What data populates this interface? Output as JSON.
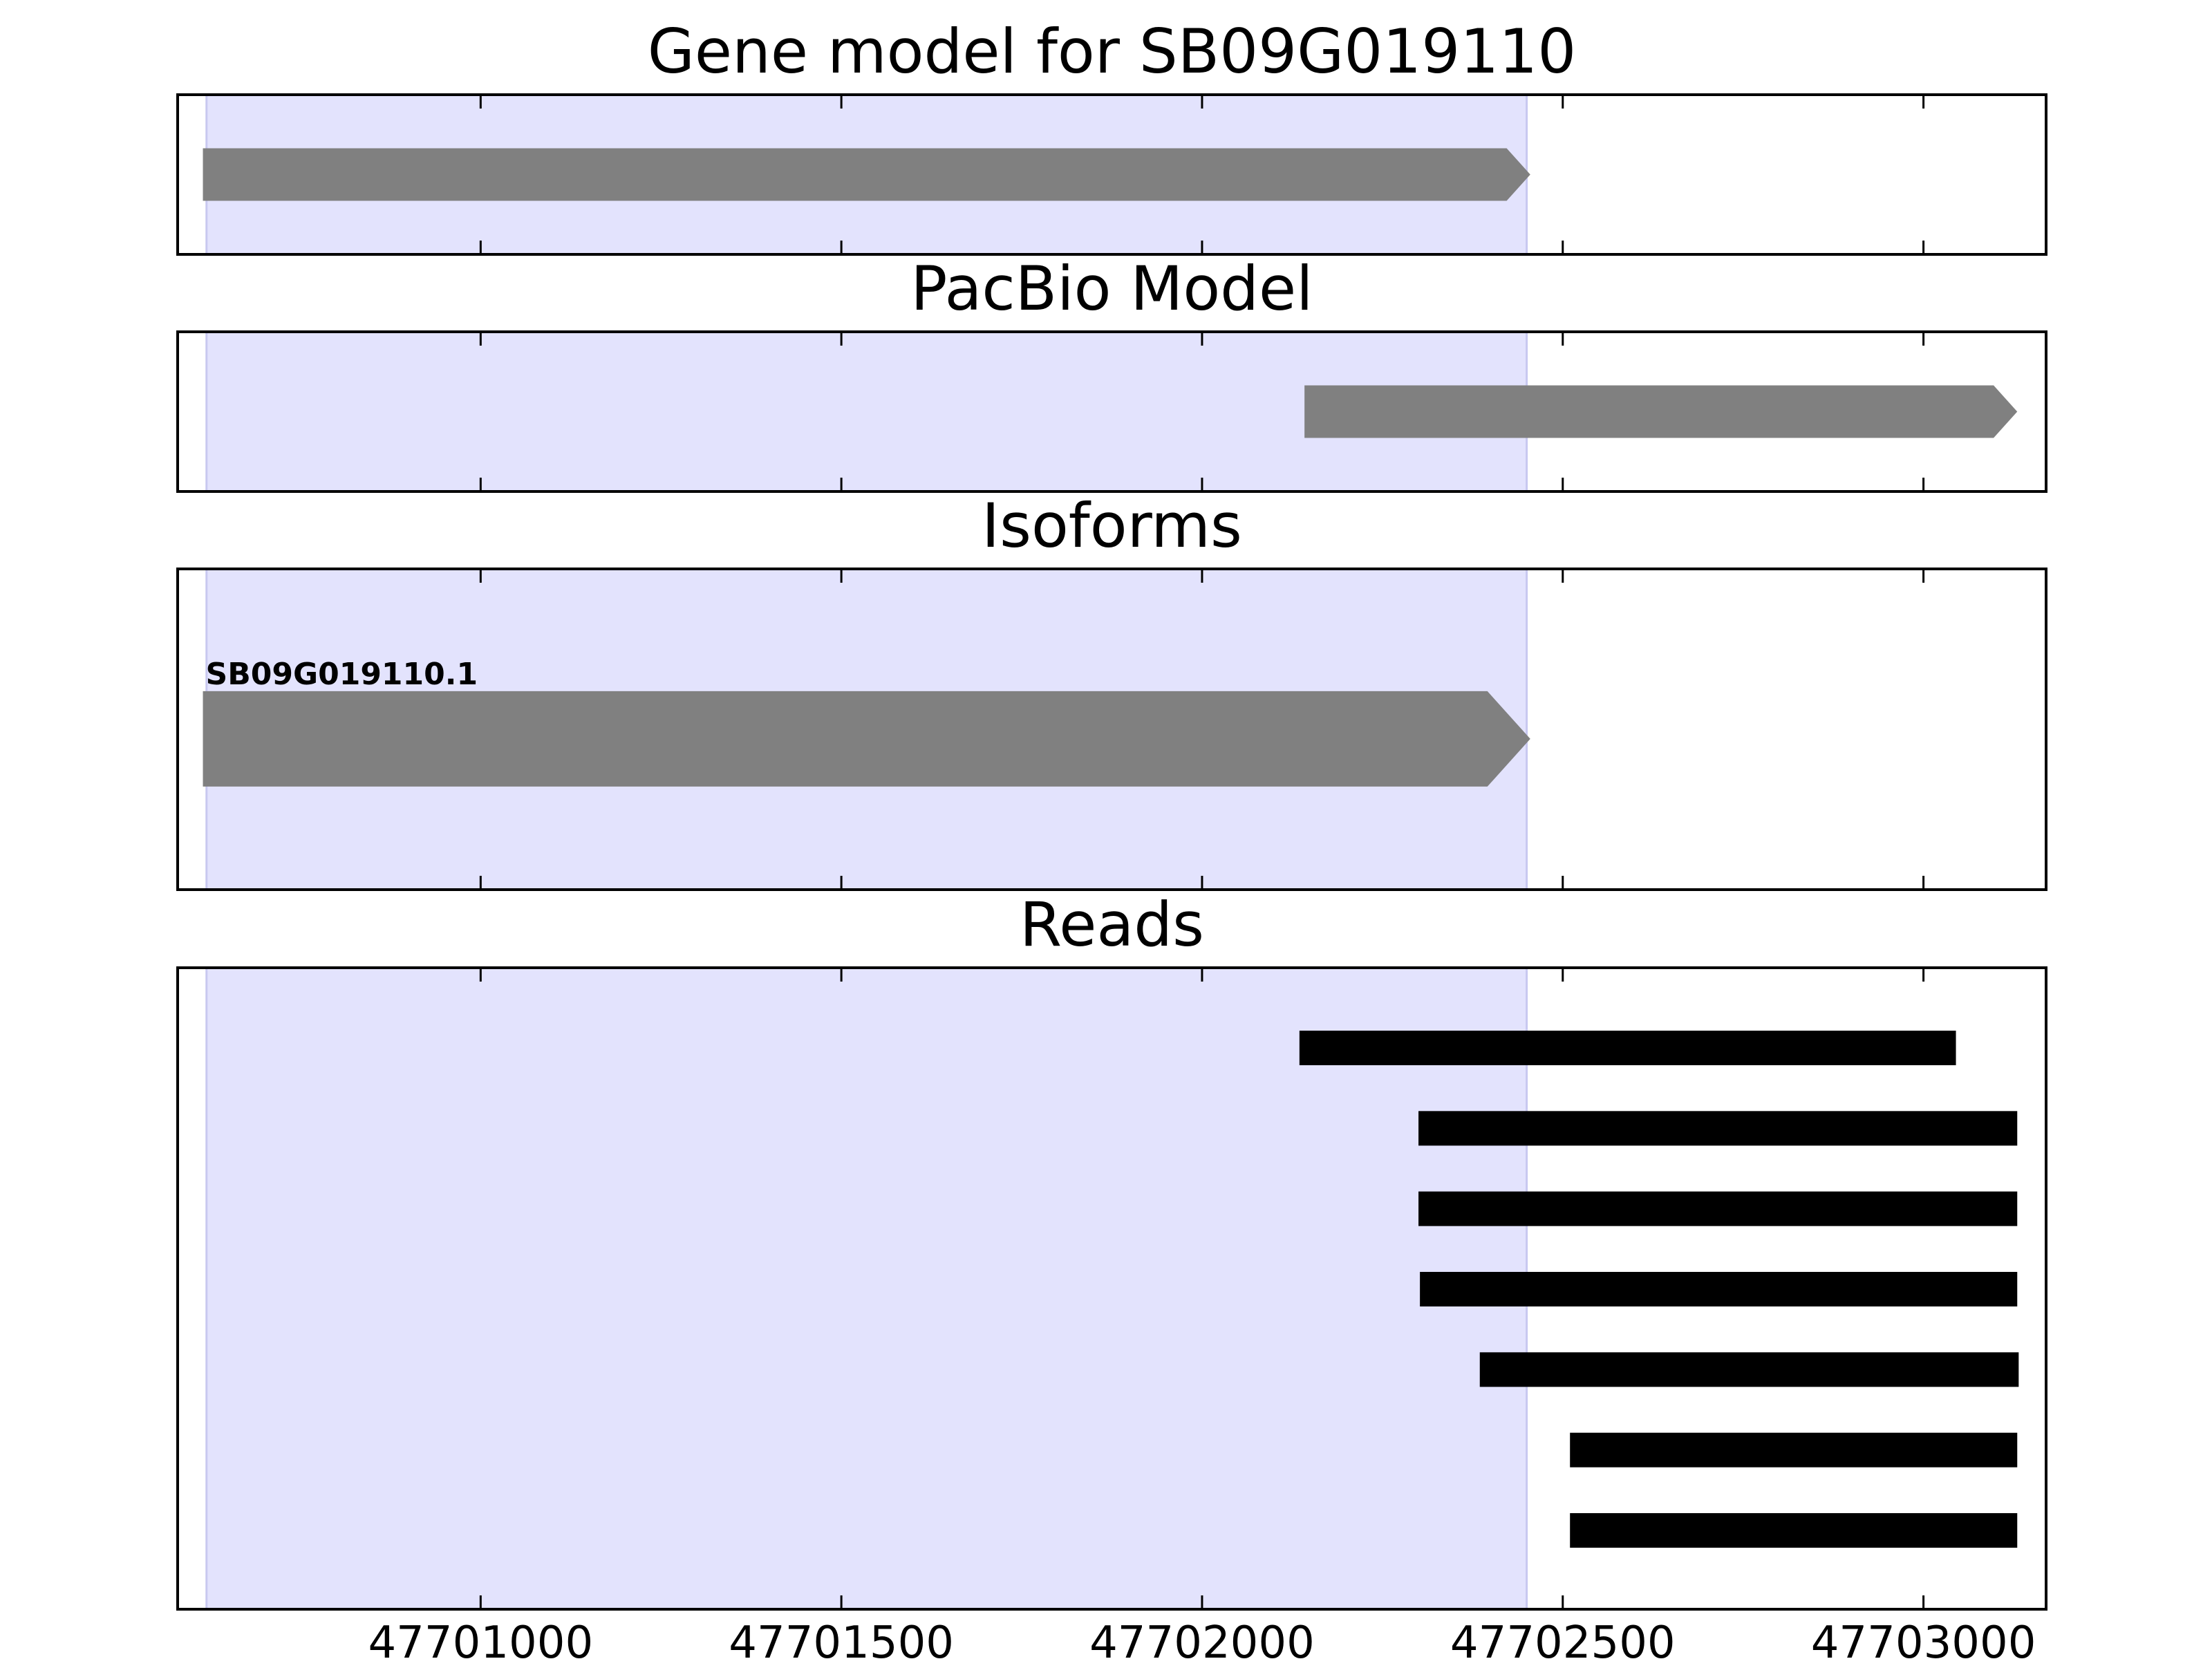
{
  "chart_data": {
    "type": "gene-track",
    "xlim": [
      47700580,
      47703170
    ],
    "xticks": [
      47701000,
      47701500,
      47702000,
      47702500,
      47703000
    ],
    "xtick_labels": [
      "47701000",
      "47701500",
      "47702000",
      "47702500",
      "47703000"
    ],
    "highlight": {
      "start": 47700620,
      "end": 47702450,
      "color": "#e3e3fd",
      "edge": "#c8c8f0"
    },
    "colors": {
      "feature": "#808080",
      "read": "#000000",
      "frame": "#000000"
    },
    "panels": [
      {
        "id": "gene-model",
        "title": "Gene model for SB09G019110",
        "features": [
          {
            "start": 47700615,
            "end": 47702455,
            "strand": "+"
          }
        ]
      },
      {
        "id": "pacbio-model",
        "title": "PacBio Model",
        "features": [
          {
            "start": 47702142,
            "end": 47703130,
            "strand": "+"
          }
        ]
      },
      {
        "id": "isoforms",
        "title": "Isoforms",
        "features": [
          {
            "start": 47700615,
            "end": 47702455,
            "strand": "+",
            "label": "SB09G019110.1"
          }
        ]
      },
      {
        "id": "reads",
        "title": "Reads",
        "reads": [
          {
            "start": 47702135,
            "end": 47703045
          },
          {
            "start": 47702300,
            "end": 47703130
          },
          {
            "start": 47702300,
            "end": 47703130
          },
          {
            "start": 47702302,
            "end": 47703130
          },
          {
            "start": 47702385,
            "end": 47703132
          },
          {
            "start": 47702510,
            "end": 47703130
          },
          {
            "start": 47702510,
            "end": 47703130
          }
        ]
      }
    ]
  }
}
